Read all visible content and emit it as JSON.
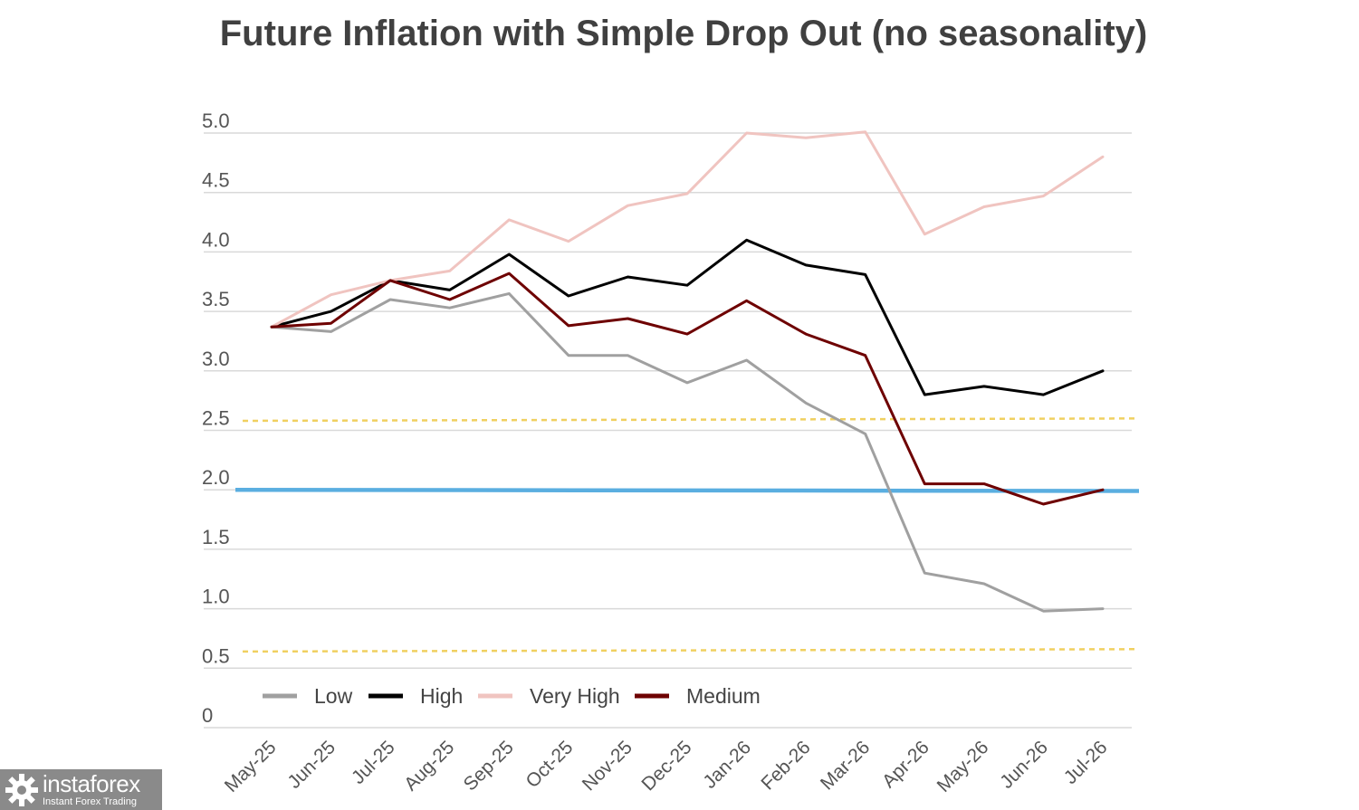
{
  "chart_data": {
    "type": "line",
    "title": "Future Inflation with Simple Drop Out (no seasonality)",
    "xlabel": "",
    "ylabel": "",
    "ylim": [
      0,
      5
    ],
    "yticks": [
      0,
      0.5,
      1.0,
      1.5,
      2.0,
      2.5,
      3.0,
      3.5,
      4.0,
      4.5,
      5.0
    ],
    "ytick_labels": [
      "0",
      "0.5",
      "1.0",
      "1.5",
      "2.0",
      "2.5",
      "3.0",
      "3.5",
      "4.0",
      "4.5",
      "5.0"
    ],
    "grid": true,
    "legend_position": "bottom-left",
    "categories": [
      "May-25",
      "Jun-25",
      "Jul-25",
      "Aug-25",
      "Sep-25",
      "Oct-25",
      "Nov-25",
      "Dec-25",
      "Jan-26",
      "Feb-26",
      "Mar-26",
      "Apr-26",
      "May-26",
      "Jun-26",
      "Jul-26"
    ],
    "series": [
      {
        "name": "Low",
        "color": "#a0a0a0",
        "values": [
          3.37,
          3.33,
          3.6,
          3.53,
          3.65,
          3.13,
          3.13,
          2.9,
          3.09,
          2.73,
          2.47,
          1.3,
          1.21,
          0.98,
          1.0
        ]
      },
      {
        "name": "High",
        "color": "#000000",
        "values": [
          3.37,
          3.5,
          3.76,
          3.68,
          3.98,
          3.63,
          3.79,
          3.72,
          4.1,
          3.89,
          3.81,
          2.8,
          2.87,
          2.8,
          3.0
        ]
      },
      {
        "name": "Very High",
        "color": "#f0c4c0",
        "values": [
          3.37,
          3.64,
          3.76,
          3.84,
          4.27,
          4.09,
          4.39,
          4.49,
          5.0,
          4.96,
          5.01,
          4.15,
          4.38,
          4.47,
          4.8
        ]
      },
      {
        "name": "Medium",
        "color": "#6e0000",
        "values": [
          3.37,
          3.4,
          3.76,
          3.6,
          3.82,
          3.38,
          3.44,
          3.31,
          3.59,
          3.31,
          3.13,
          2.05,
          2.05,
          1.88,
          2.0
        ]
      }
    ],
    "reference_lines": [
      {
        "name": "target",
        "color": "#5aaee0",
        "style": "solid",
        "y_start": 2.0,
        "y_end": 1.99
      },
      {
        "name": "upper-band",
        "color": "#f0d060",
        "style": "dashed",
        "y_start": 2.58,
        "y_end": 2.6
      },
      {
        "name": "lower-band",
        "color": "#f0d060",
        "style": "dashed",
        "y_start": 0.64,
        "y_end": 0.66
      }
    ]
  },
  "watermark": {
    "brand": "instaforex",
    "tagline": "Instant Forex Trading"
  }
}
